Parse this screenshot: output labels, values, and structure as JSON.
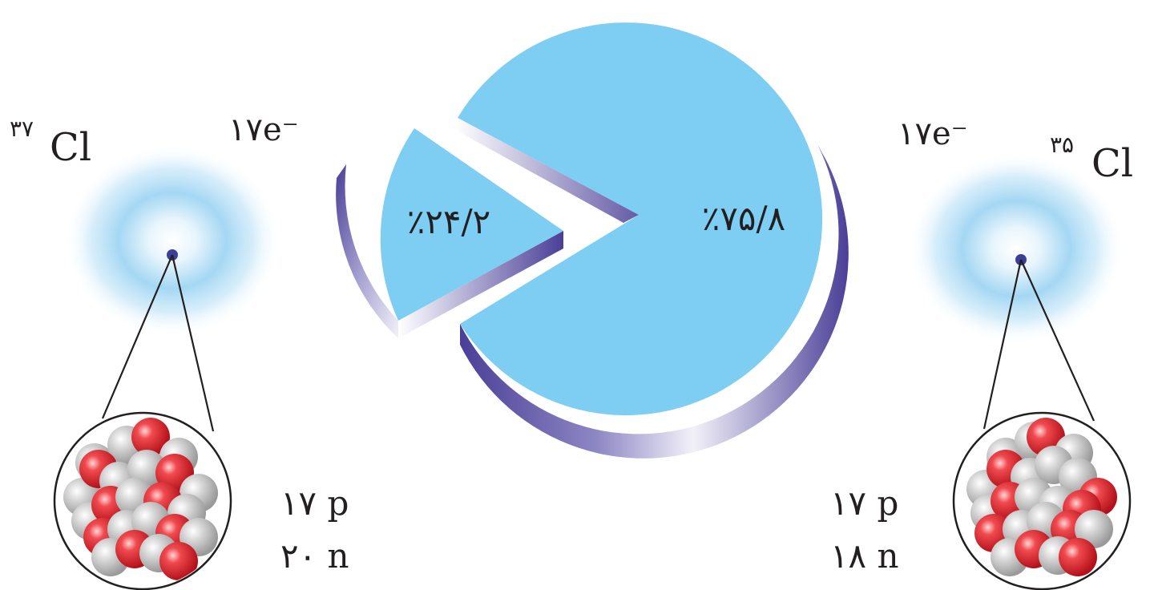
{
  "chart_data": {
    "type": "pie",
    "slices": [
      {
        "value": 75.8,
        "label": "٪۷۵/۸"
      },
      {
        "value": 24.2,
        "label": "٪۲۴/۲"
      }
    ],
    "colors": {
      "top": "#7ecdf2",
      "side_dark": "#4a3f97",
      "side_light": "#e8e6f4"
    }
  },
  "isotopes": {
    "cl37": {
      "mass": "۳۷",
      "symbol": "Cl",
      "electrons": "۱۷e⁻",
      "protons": "۱۷ p",
      "neutrons": "۲۰ n"
    },
    "cl35": {
      "mass": "۳۵",
      "symbol": "Cl",
      "electrons": "۱۷e⁻",
      "protons": "۱۷ p",
      "neutrons": "۱۸ n"
    }
  },
  "colors": {
    "cloud": "#7fc6ee",
    "nucleus_dot": "#3b3f9a",
    "proton": "#e8202a",
    "neutron": "#c8c8c8"
  }
}
